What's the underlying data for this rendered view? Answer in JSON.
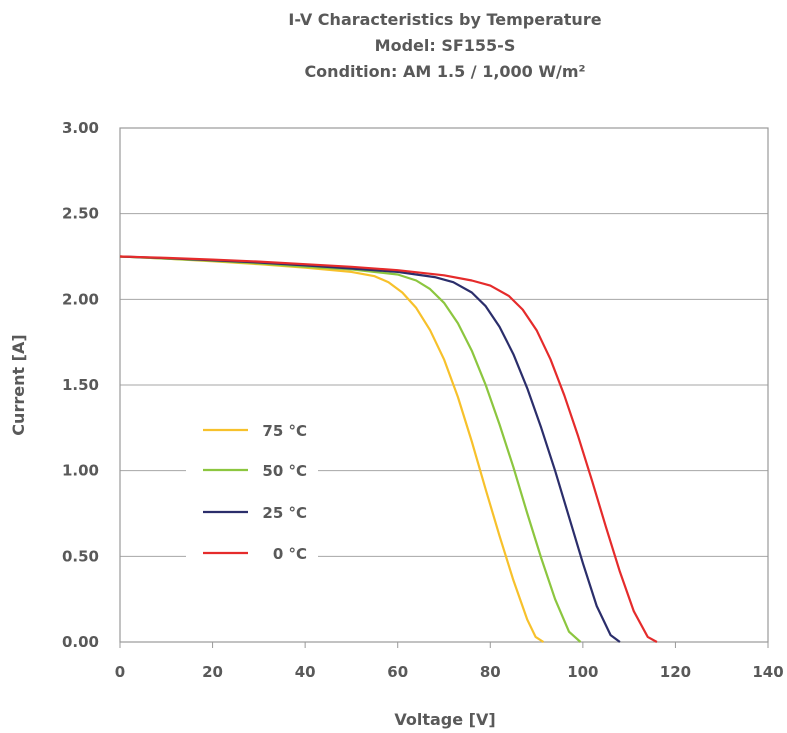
{
  "chart_data": {
    "type": "line",
    "title_lines": [
      "I-V Characteristics by Temperature",
      "Model:  SF155-S",
      "Condition:   AM 1.5 / 1,000 W/m²"
    ],
    "xlabel": "Voltage [V]",
    "ylabel": "Current [A]",
    "xlim": [
      0,
      140
    ],
    "ylim": [
      0,
      3
    ],
    "x_ticks": [
      "0",
      "20",
      "40",
      "60",
      "80",
      "100",
      "120",
      "140"
    ],
    "y_ticks": [
      "0.00",
      "0.50",
      "1.00",
      "1.50",
      "2.00",
      "2.50",
      "3.00"
    ],
    "grid": "horizontal",
    "legend_position": "center-left",
    "series": [
      {
        "name": "75 °C",
        "color": "#f7c12b",
        "points": [
          [
            0,
            2.25
          ],
          [
            10,
            2.237
          ],
          [
            20,
            2.222
          ],
          [
            30,
            2.205
          ],
          [
            40,
            2.185
          ],
          [
            50,
            2.16
          ],
          [
            55,
            2.135
          ],
          [
            58,
            2.1
          ],
          [
            61,
            2.04
          ],
          [
            64,
            1.95
          ],
          [
            67,
            1.82
          ],
          [
            70,
            1.65
          ],
          [
            73,
            1.43
          ],
          [
            76,
            1.17
          ],
          [
            79,
            0.89
          ],
          [
            82,
            0.62
          ],
          [
            85,
            0.36
          ],
          [
            88,
            0.13
          ],
          [
            89.8,
            0.03
          ],
          [
            91.5,
            0
          ]
        ]
      },
      {
        "name": "50 °C",
        "color": "#8cc63f",
        "points": [
          [
            0,
            2.25
          ],
          [
            10,
            2.238
          ],
          [
            20,
            2.225
          ],
          [
            30,
            2.21
          ],
          [
            40,
            2.19
          ],
          [
            50,
            2.175
          ],
          [
            60,
            2.145
          ],
          [
            64,
            2.11
          ],
          [
            67,
            2.06
          ],
          [
            70,
            1.98
          ],
          [
            73,
            1.86
          ],
          [
            76,
            1.7
          ],
          [
            79,
            1.5
          ],
          [
            82,
            1.27
          ],
          [
            85,
            1.02
          ],
          [
            88,
            0.75
          ],
          [
            91,
            0.49
          ],
          [
            94,
            0.25
          ],
          [
            97,
            0.06
          ],
          [
            99.5,
            0
          ]
        ]
      },
      {
        "name": "25 °C",
        "color": "#2b2e6b",
        "points": [
          [
            0,
            2.25
          ],
          [
            10,
            2.24
          ],
          [
            20,
            2.228
          ],
          [
            30,
            2.215
          ],
          [
            40,
            2.198
          ],
          [
            50,
            2.18
          ],
          [
            60,
            2.16
          ],
          [
            68,
            2.13
          ],
          [
            72,
            2.1
          ],
          [
            76,
            2.04
          ],
          [
            79,
            1.96
          ],
          [
            82,
            1.84
          ],
          [
            85,
            1.68
          ],
          [
            88,
            1.48
          ],
          [
            91,
            1.25
          ],
          [
            94,
            1.0
          ],
          [
            97,
            0.73
          ],
          [
            100,
            0.46
          ],
          [
            103,
            0.21
          ],
          [
            106,
            0.04
          ],
          [
            108,
            0
          ]
        ]
      },
      {
        "name": "0 °C",
        "color": "#e52b2b",
        "points": [
          [
            0,
            2.25
          ],
          [
            10,
            2.242
          ],
          [
            20,
            2.232
          ],
          [
            30,
            2.22
          ],
          [
            40,
            2.205
          ],
          [
            50,
            2.19
          ],
          [
            60,
            2.17
          ],
          [
            70,
            2.14
          ],
          [
            76,
            2.11
          ],
          [
            80,
            2.08
          ],
          [
            84,
            2.02
          ],
          [
            87,
            1.94
          ],
          [
            90,
            1.82
          ],
          [
            93,
            1.65
          ],
          [
            96,
            1.44
          ],
          [
            99,
            1.2
          ],
          [
            102,
            0.94
          ],
          [
            105,
            0.67
          ],
          [
            108,
            0.41
          ],
          [
            111,
            0.18
          ],
          [
            114,
            0.03
          ],
          [
            116,
            0
          ]
        ]
      }
    ]
  }
}
